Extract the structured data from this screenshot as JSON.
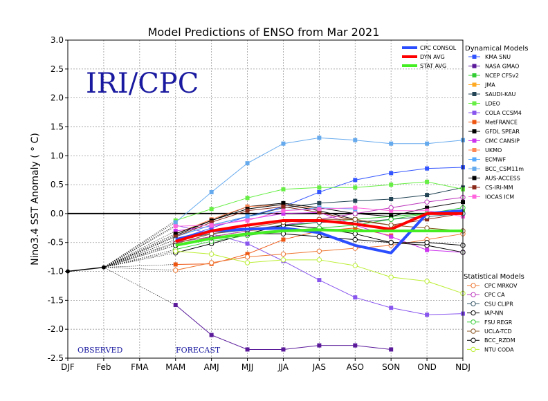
{
  "chart_data": {
    "type": "line",
    "title": "Model Predictions of ENSO from Mar 2021",
    "xlabel": "",
    "ylabel": "Nino3.4 SST Anomaly ( ° C)",
    "stamp": "IRI/CPC",
    "observed_label": "OBSERVED",
    "forecast_label": "FORECAST",
    "categories": [
      "DJF",
      "Feb",
      "FMA",
      "MAM",
      "AMJ",
      "MJJ",
      "JJA",
      "JAS",
      "ASO",
      "SON",
      "OND",
      "NDJ"
    ],
    "ylim": [
      -2.5,
      3.0
    ],
    "yticks": [
      "3.0",
      "2.5",
      "2.0",
      "1.5",
      "1.0",
      "0.5",
      "0.0",
      "-0.5",
      "-1.0",
      "-1.5",
      "-2.0",
      "-2.5"
    ],
    "grid": true,
    "legend_position": "right",
    "observed": {
      "x": [
        0,
        1
      ],
      "values": [
        -1.0,
        -0.93
      ],
      "color": "#000000"
    },
    "averages_legend_position": "top-right",
    "averages": [
      {
        "name": "CPC CONSOL",
        "color": "#2a4dff",
        "values": [
          null,
          null,
          null,
          -0.45,
          -0.3,
          -0.27,
          -0.25,
          -0.33,
          -0.55,
          -0.68,
          0.0,
          0.05
        ]
      },
      {
        "name": "DYN AVG",
        "color": "#ff0000",
        "values": [
          null,
          null,
          null,
          -0.48,
          -0.3,
          -0.2,
          -0.12,
          -0.12,
          -0.18,
          -0.27,
          0.0,
          0.0
        ]
      },
      {
        "name": "STAT AVG",
        "color": "#44ee22",
        "values": [
          null,
          null,
          null,
          -0.55,
          -0.43,
          -0.35,
          -0.3,
          -0.28,
          -0.3,
          -0.3,
          -0.3,
          -0.3
        ]
      }
    ],
    "dynamical_title": "Dynamical Models",
    "dynamical_models": [
      {
        "name": "KMA SNU",
        "color": "#3355ff",
        "values": [
          null,
          null,
          null,
          -0.45,
          -0.25,
          -0.05,
          0.12,
          0.37,
          0.58,
          0.7,
          0.78,
          0.8
        ]
      },
      {
        "name": "NASA GMAO",
        "color": "#5a1a9a",
        "values": [
          null,
          null,
          null,
          -1.58,
          -2.1,
          -2.35,
          -2.35,
          -2.28,
          -2.28,
          -2.35,
          null,
          null
        ]
      },
      {
        "name": "NCEP CFSv2",
        "color": "#33cc33",
        "values": [
          null,
          null,
          null,
          -0.5,
          -0.4,
          -0.3,
          -0.22,
          -0.15,
          -0.1,
          -0.05,
          0.0,
          0.05
        ]
      },
      {
        "name": "JMA",
        "color": "#ffaa22",
        "values": [
          null,
          null,
          null,
          -0.55,
          -0.4,
          -0.3,
          -0.25,
          null,
          null,
          null,
          null,
          null
        ]
      },
      {
        "name": "SAUDI-KAU",
        "color": "#224455",
        "values": [
          null,
          null,
          null,
          -0.4,
          -0.2,
          -0.05,
          0.1,
          0.18,
          0.22,
          0.25,
          0.32,
          0.45
        ]
      },
      {
        "name": "LDEO",
        "color": "#66ee44",
        "values": [
          null,
          null,
          null,
          -0.12,
          0.08,
          0.27,
          0.42,
          0.45,
          0.45,
          0.5,
          0.55,
          0.42
        ]
      },
      {
        "name": "COLA CCSM4",
        "color": "#8855ee",
        "values": [
          null,
          null,
          null,
          -0.2,
          -0.35,
          -0.52,
          -0.82,
          -1.15,
          -1.45,
          -1.63,
          -1.75,
          -1.73
        ]
      },
      {
        "name": "MetFRANCE",
        "color": "#ee5511",
        "values": [
          null,
          null,
          null,
          -0.88,
          -0.87,
          -0.7,
          -0.45,
          -0.3,
          -0.25,
          -0.38,
          null,
          null
        ]
      },
      {
        "name": "GFDL SPEAR",
        "color": "#000000",
        "values": [
          null,
          null,
          null,
          -0.38,
          -0.12,
          0.12,
          0.18,
          0.1,
          0.0,
          -0.05,
          0.1,
          0.2
        ]
      },
      {
        "name": "CMC CANSIP",
        "color": "#cc33ee",
        "values": [
          null,
          null,
          null,
          -0.3,
          -0.22,
          -0.1,
          0.0,
          0.02,
          -0.2,
          -0.4,
          -0.63,
          -0.67
        ]
      },
      {
        "name": "UKMO",
        "color": "#ff8855",
        "values": [
          null,
          null,
          null,
          -0.35,
          -0.1,
          0.12,
          0.15,
          0.08,
          null,
          null,
          null,
          null
        ]
      },
      {
        "name": "ECMWF",
        "color": "#55aaff",
        "values": [
          null,
          null,
          null,
          -0.4,
          -0.2,
          -0.05,
          0.05,
          0.1,
          0.08,
          null,
          null,
          null
        ]
      },
      {
        "name": "BCC_CSM11m",
        "color": "#66aaee",
        "values": [
          null,
          null,
          null,
          -0.15,
          0.37,
          0.87,
          1.21,
          1.31,
          1.27,
          1.21,
          1.21,
          1.27
        ]
      },
      {
        "name": "AUS-ACCESS",
        "color": "#000000",
        "values": [
          null,
          null,
          null,
          -0.35,
          -0.12,
          0.08,
          0.16,
          0.05,
          -0.1,
          null,
          null,
          null
        ]
      },
      {
        "name": "CS-IRI-MM",
        "color": "#8b2a1a",
        "values": [
          null,
          null,
          null,
          -0.4,
          -0.15,
          0.05,
          0.12,
          0.02,
          -0.12,
          -0.2,
          -0.1,
          0.0
        ]
      },
      {
        "name": "IOCAS ICM",
        "color": "#ff66dd",
        "values": [
          null,
          null,
          null,
          -0.22,
          -0.2,
          -0.12,
          0.05,
          0.08,
          0.1,
          0.05,
          0.05,
          -0.05
        ]
      }
    ],
    "statistical_title": "Statistical Models",
    "statistical_models": [
      {
        "name": "CPC MRKOV",
        "color": "#ee7733",
        "values": [
          null,
          null,
          null,
          -0.98,
          -0.85,
          -0.75,
          -0.7,
          -0.65,
          -0.6,
          -0.55,
          -0.45,
          -0.35
        ]
      },
      {
        "name": "CPC CA",
        "color": "#bb33bb",
        "values": [
          null,
          null,
          null,
          -0.5,
          -0.4,
          -0.3,
          -0.2,
          -0.1,
          0.0,
          0.1,
          0.2,
          0.28
        ]
      },
      {
        "name": "CSU CLIPR",
        "color": "#335566",
        "values": [
          null,
          null,
          null,
          -0.45,
          -0.35,
          -0.28,
          -0.2,
          -0.15,
          -0.15,
          -0.1,
          -0.05,
          0.0
        ]
      },
      {
        "name": "IAP-NN",
        "color": "#000000",
        "values": [
          null,
          null,
          null,
          -0.68,
          -0.52,
          -0.35,
          -0.2,
          -0.25,
          -0.35,
          -0.5,
          -0.55,
          -0.67
        ]
      },
      {
        "name": "FSU REGR",
        "color": "#33cc33",
        "values": [
          null,
          null,
          null,
          -0.62,
          -0.48,
          -0.38,
          -0.3,
          -0.25,
          -0.2,
          -0.1,
          0.0,
          0.1
        ]
      },
      {
        "name": "UCLA-TCD",
        "color": "#885522",
        "values": [
          null,
          null,
          null,
          -0.52,
          -0.35,
          -0.25,
          -0.15,
          -0.1,
          -0.1,
          -0.2,
          -0.25,
          -0.3
        ]
      },
      {
        "name": "BCC_RZDM",
        "color": "#000000",
        "values": [
          null,
          null,
          null,
          -0.55,
          -0.42,
          -0.35,
          -0.35,
          -0.4,
          -0.45,
          -0.5,
          -0.5,
          -0.55
        ]
      },
      {
        "name": "NTU CODA",
        "color": "#bbee33",
        "values": [
          null,
          null,
          null,
          -0.65,
          -0.7,
          -0.85,
          -0.8,
          -0.8,
          -0.9,
          -1.1,
          -1.17,
          -1.38
        ]
      }
    ]
  }
}
